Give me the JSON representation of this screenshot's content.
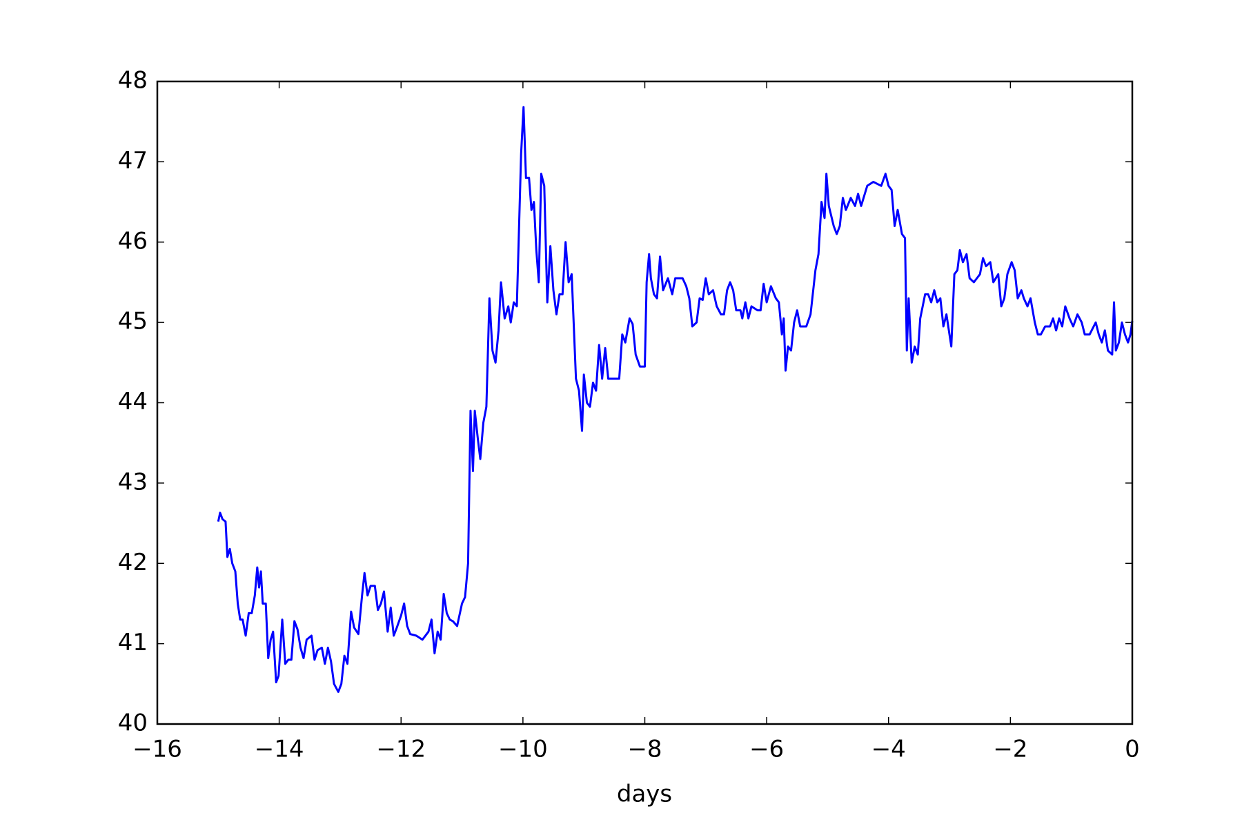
{
  "chart_data": {
    "type": "line",
    "xlabel": "days",
    "xlim": [
      -16,
      0
    ],
    "ylim": [
      40,
      48
    ],
    "xticks": [
      {
        "value": -16,
        "label": "−16"
      },
      {
        "value": -14,
        "label": "−14"
      },
      {
        "value": -12,
        "label": "−12"
      },
      {
        "value": -10,
        "label": "−10"
      },
      {
        "value": -8,
        "label": "−8"
      },
      {
        "value": -6,
        "label": "−6"
      },
      {
        "value": -4,
        "label": "−4"
      },
      {
        "value": -2,
        "label": "−2"
      },
      0
    ],
    "yticks": [
      40,
      41,
      42,
      43,
      44,
      45,
      46,
      47,
      48
    ],
    "grid": false,
    "x": [
      -15.0,
      -14.97,
      -14.93,
      -14.88,
      -14.85,
      -14.81,
      -14.77,
      -14.72,
      -14.68,
      -14.64,
      -14.6,
      -14.55,
      -14.5,
      -14.45,
      -14.4,
      -14.36,
      -14.33,
      -14.3,
      -14.27,
      -14.22,
      -14.18,
      -14.14,
      -14.1,
      -14.05,
      -14.01,
      -13.95,
      -13.9,
      -13.85,
      -13.8,
      -13.75,
      -13.7,
      -13.65,
      -13.6,
      -13.55,
      -13.47,
      -13.42,
      -13.37,
      -13.3,
      -13.25,
      -13.2,
      -13.15,
      -13.1,
      -13.03,
      -12.98,
      -12.93,
      -12.88,
      -12.82,
      -12.77,
      -12.7,
      -12.64,
      -12.6,
      -12.55,
      -12.5,
      -12.43,
      -12.38,
      -12.33,
      -12.28,
      -12.22,
      -12.17,
      -12.12,
      -12.07,
      -12.0,
      -11.95,
      -11.9,
      -11.85,
      -11.75,
      -11.65,
      -11.55,
      -11.5,
      -11.45,
      -11.4,
      -11.35,
      -11.3,
      -11.25,
      -11.2,
      -11.15,
      -11.08,
      -11.0,
      -10.95,
      -10.9,
      -10.86,
      -10.82,
      -10.79,
      -10.74,
      -10.7,
      -10.65,
      -10.6,
      -10.55,
      -10.5,
      -10.45,
      -10.4,
      -10.36,
      -10.3,
      -10.24,
      -10.2,
      -10.15,
      -10.1,
      -10.03,
      -9.99,
      -9.95,
      -9.9,
      -9.86,
      -9.82,
      -9.78,
      -9.74,
      -9.7,
      -9.65,
      -9.6,
      -9.55,
      -9.5,
      -9.45,
      -9.4,
      -9.35,
      -9.3,
      -9.25,
      -9.2,
      -9.13,
      -9.08,
      -9.03,
      -9.0,
      -8.95,
      -8.9,
      -8.85,
      -8.8,
      -8.75,
      -8.7,
      -8.65,
      -8.6,
      -8.5,
      -8.42,
      -8.37,
      -8.32,
      -8.25,
      -8.2,
      -8.15,
      -8.08,
      -8.0,
      -7.97,
      -7.93,
      -7.9,
      -7.85,
      -7.8,
      -7.75,
      -7.7,
      -7.62,
      -7.55,
      -7.5,
      -7.43,
      -7.38,
      -7.32,
      -7.27,
      -7.22,
      -7.15,
      -7.1,
      -7.05,
      -7.0,
      -6.95,
      -6.88,
      -6.82,
      -6.75,
      -6.7,
      -6.65,
      -6.6,
      -6.55,
      -6.5,
      -6.43,
      -6.4,
      -6.35,
      -6.3,
      -6.25,
      -6.15,
      -6.1,
      -6.05,
      -6.0,
      -5.93,
      -5.85,
      -5.8,
      -5.75,
      -5.72,
      -5.69,
      -5.65,
      -5.6,
      -5.55,
      -5.5,
      -5.45,
      -5.35,
      -5.28,
      -5.2,
      -5.15,
      -5.1,
      -5.05,
      -5.02,
      -4.98,
      -4.9,
      -4.85,
      -4.8,
      -4.75,
      -4.7,
      -4.62,
      -4.55,
      -4.5,
      -4.45,
      -4.35,
      -4.25,
      -4.12,
      -4.05,
      -4.0,
      -3.95,
      -3.9,
      -3.85,
      -3.78,
      -3.73,
      -3.7,
      -3.67,
      -3.62,
      -3.57,
      -3.52,
      -3.48,
      -3.4,
      -3.35,
      -3.3,
      -3.25,
      -3.2,
      -3.15,
      -3.1,
      -3.05,
      -3.0,
      -2.97,
      -2.92,
      -2.87,
      -2.83,
      -2.78,
      -2.72,
      -2.67,
      -2.6,
      -2.55,
      -2.5,
      -2.45,
      -2.4,
      -2.33,
      -2.28,
      -2.2,
      -2.15,
      -2.1,
      -2.05,
      -1.98,
      -1.93,
      -1.88,
      -1.82,
      -1.78,
      -1.72,
      -1.67,
      -1.6,
      -1.55,
      -1.5,
      -1.43,
      -1.35,
      -1.3,
      -1.25,
      -1.2,
      -1.15,
      -1.1,
      -1.03,
      -0.97,
      -0.9,
      -0.83,
      -0.78,
      -0.7,
      -0.6,
      -0.55,
      -0.5,
      -0.45,
      -0.4,
      -0.33,
      -0.3,
      -0.27,
      -0.22,
      -0.17,
      -0.12,
      -0.07,
      -0.03,
      0
    ],
    "series": [
      {
        "color": "#0000ff",
        "values": [
          42.52,
          42.63,
          42.55,
          42.52,
          42.08,
          42.18,
          42.0,
          41.9,
          41.5,
          41.3,
          41.3,
          41.1,
          41.38,
          41.38,
          41.6,
          41.95,
          41.7,
          41.9,
          41.5,
          41.5,
          40.82,
          41.05,
          41.15,
          40.52,
          40.6,
          41.3,
          40.75,
          40.8,
          40.8,
          41.28,
          41.18,
          40.95,
          40.82,
          41.05,
          41.1,
          40.8,
          40.92,
          40.95,
          40.75,
          40.95,
          40.78,
          40.5,
          40.4,
          40.5,
          40.85,
          40.75,
          41.4,
          41.2,
          41.12,
          41.6,
          41.88,
          41.6,
          41.72,
          41.72,
          41.42,
          41.5,
          41.65,
          41.15,
          41.45,
          41.1,
          41.2,
          41.35,
          41.5,
          41.22,
          41.12,
          41.1,
          41.05,
          41.15,
          41.3,
          40.88,
          41.15,
          41.05,
          41.62,
          41.38,
          41.3,
          41.28,
          41.22,
          41.5,
          41.58,
          42.0,
          43.9,
          43.15,
          43.9,
          43.55,
          43.3,
          43.75,
          43.95,
          45.3,
          44.65,
          44.5,
          44.9,
          45.5,
          45.05,
          45.2,
          45.0,
          45.25,
          45.2,
          47.1,
          47.68,
          46.8,
          46.8,
          46.4,
          46.5,
          45.9,
          45.5,
          46.85,
          46.7,
          45.25,
          45.95,
          45.4,
          45.1,
          45.35,
          45.35,
          46.0,
          45.5,
          45.6,
          44.3,
          44.15,
          43.65,
          44.35,
          44.0,
          43.95,
          44.25,
          44.15,
          44.72,
          44.3,
          44.68,
          44.3,
          44.3,
          44.3,
          44.85,
          44.75,
          45.05,
          44.98,
          44.6,
          44.45,
          44.45,
          45.5,
          45.85,
          45.55,
          45.35,
          45.3,
          45.82,
          45.4,
          45.55,
          45.35,
          45.55,
          45.55,
          45.55,
          45.45,
          45.3,
          44.95,
          45.0,
          45.3,
          45.28,
          45.55,
          45.35,
          45.4,
          45.2,
          45.1,
          45.1,
          45.4,
          45.5,
          45.4,
          45.15,
          45.15,
          45.05,
          45.25,
          45.05,
          45.2,
          45.15,
          45.15,
          45.48,
          45.25,
          45.45,
          45.3,
          45.25,
          44.85,
          45.05,
          44.4,
          44.7,
          44.65,
          45.0,
          45.15,
          44.95,
          44.95,
          45.1,
          45.65,
          45.85,
          46.5,
          46.3,
          46.85,
          46.45,
          46.2,
          46.1,
          46.2,
          46.55,
          46.4,
          46.55,
          46.45,
          46.6,
          46.45,
          46.7,
          46.75,
          46.7,
          46.85,
          46.7,
          46.65,
          46.2,
          46.4,
          46.1,
          46.05,
          44.65,
          45.3,
          44.5,
          44.7,
          44.6,
          45.05,
          45.35,
          45.35,
          45.25,
          45.4,
          45.25,
          45.3,
          44.95,
          45.1,
          44.85,
          44.7,
          45.6,
          45.65,
          45.9,
          45.75,
          45.85,
          45.55,
          45.5,
          45.55,
          45.6,
          45.8,
          45.7,
          45.75,
          45.5,
          45.6,
          45.2,
          45.3,
          45.6,
          45.75,
          45.65,
          45.3,
          45.4,
          45.3,
          45.2,
          45.3,
          45.0,
          44.85,
          44.85,
          44.95,
          44.95,
          45.05,
          44.9,
          45.05,
          44.95,
          45.2,
          45.05,
          44.95,
          45.1,
          45.0,
          44.85,
          44.85,
          45.0,
          44.85,
          44.75,
          44.9,
          44.65,
          44.6,
          45.25,
          44.65,
          44.75,
          45.0,
          44.85,
          44.75,
          44.85,
          45.02
        ]
      }
    ]
  }
}
